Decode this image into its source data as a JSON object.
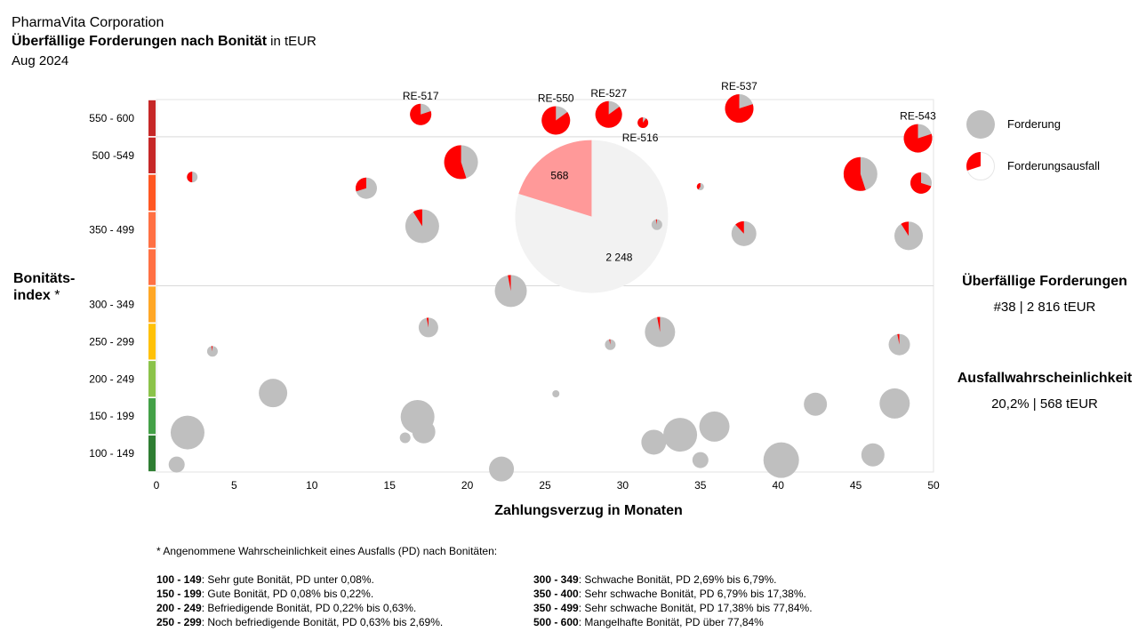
{
  "header": {
    "company": "PharmaVita Corporation",
    "title": "Überfällige Forderungen nach Bonität",
    "unit": "in tEUR",
    "period": "Aug 2024"
  },
  "colors": {
    "receivable": "#bfbfbf",
    "default": "#ff0000",
    "highlight_receivable": "#f2f2f2",
    "highlight_default": "#ff9999",
    "bands": [
      "#2e7d32",
      "#43a047",
      "#8bc34a",
      "#ffc107",
      "#ffa726",
      "#ff7043",
      "#ff5722",
      "#c62828"
    ]
  },
  "chart_data": {
    "type": "scatter",
    "subtype": "bubble-pie",
    "xlabel": "Zahlungsverzug in Monaten",
    "ylabel": "Bonitäts-\nindex",
    "ylabel_mark": "*",
    "xlim": [
      0,
      50
    ],
    "xticks": [
      0,
      5,
      10,
      15,
      20,
      25,
      30,
      35,
      40,
      45,
      50
    ],
    "ylim": [
      100,
      600
    ],
    "yticks": [
      {
        "label": "100 - 149",
        "value": 125
      },
      {
        "label": "150 - 199",
        "value": 175
      },
      {
        "label": "200 - 249",
        "value": 225
      },
      {
        "label": "250 - 299",
        "value": 275
      },
      {
        "label": "300 - 349",
        "value": 325
      },
      {
        "label": "350 - 499",
        "value": 425
      },
      {
        "label": "500 -549",
        "value": 525
      },
      {
        "label": "550 - 600",
        "value": 575
      }
    ],
    "band_bounds": [
      100,
      150,
      200,
      250,
      300,
      350,
      400,
      450,
      500,
      550,
      600
    ],
    "separators": [
      350,
      550
    ],
    "legend": {
      "receivable": "Forderung",
      "default": "Forderungsausfall",
      "placement": "top-right"
    },
    "highlight": {
      "x": 28,
      "y": 443,
      "r": 86,
      "default": "568",
      "remaining": "2 248",
      "default_share": 0.202
    },
    "points": [
      {
        "x": 17,
        "y": 580,
        "r": 12,
        "d": 0.8,
        "label": "RE-517"
      },
      {
        "x": 25.7,
        "y": 572,
        "r": 16,
        "d": 0.85,
        "label": "RE-550"
      },
      {
        "x": 29.1,
        "y": 580,
        "r": 15,
        "d": 0.85,
        "label": "RE-527"
      },
      {
        "x": 31.3,
        "y": 569,
        "r": 6,
        "d": 0.9,
        "label": "RE-516"
      },
      {
        "x": 37.5,
        "y": 588,
        "r": 16,
        "d": 0.8,
        "label": "RE-537"
      },
      {
        "x": 49,
        "y": 548,
        "r": 16,
        "d": 0.8,
        "label": "RE-543"
      },
      {
        "x": 2.3,
        "y": 496,
        "r": 6,
        "d": 0.5
      },
      {
        "x": 13.5,
        "y": 481,
        "r": 12,
        "d": 0.3
      },
      {
        "x": 19.6,
        "y": 516,
        "r": 19,
        "d": 0.55
      },
      {
        "x": 17.1,
        "y": 430,
        "r": 19,
        "d": 0.09
      },
      {
        "x": 32.2,
        "y": 432,
        "r": 6,
        "d": 0.03
      },
      {
        "x": 35.0,
        "y": 483,
        "r": 4,
        "d": 0.4
      },
      {
        "x": 45.3,
        "y": 500,
        "r": 19,
        "d": 0.55
      },
      {
        "x": 49.2,
        "y": 488,
        "r": 12,
        "d": 0.7
      },
      {
        "x": 37.8,
        "y": 420,
        "r": 14,
        "d": 0.12
      },
      {
        "x": 48.4,
        "y": 417,
        "r": 16,
        "d": 0.09
      },
      {
        "x": 22.8,
        "y": 343,
        "r": 18,
        "d": 0.02
      },
      {
        "x": 17.5,
        "y": 294,
        "r": 11,
        "d": 0.02
      },
      {
        "x": 3.6,
        "y": 262,
        "r": 6,
        "d": 0.02
      },
      {
        "x": 29.2,
        "y": 271,
        "r": 6,
        "d": 0.02
      },
      {
        "x": 32.4,
        "y": 288,
        "r": 17,
        "d": 0.02
      },
      {
        "x": 47.8,
        "y": 271,
        "r": 12,
        "d": 0.02
      },
      {
        "x": 7.5,
        "y": 206,
        "r": 16,
        "d": 0
      },
      {
        "x": 25.7,
        "y": 205,
        "r": 4,
        "d": 0
      },
      {
        "x": 2.0,
        "y": 153,
        "r": 19,
        "d": 0
      },
      {
        "x": 16.8,
        "y": 174,
        "r": 19,
        "d": 0
      },
      {
        "x": 17.2,
        "y": 154,
        "r": 13,
        "d": 0
      },
      {
        "x": 16.0,
        "y": 146,
        "r": 6,
        "d": 0
      },
      {
        "x": 1.3,
        "y": 110,
        "r": 9,
        "d": 0
      },
      {
        "x": 22.2,
        "y": 104,
        "r": 14,
        "d": 0
      },
      {
        "x": 32.0,
        "y": 140,
        "r": 14,
        "d": 0
      },
      {
        "x": 33.7,
        "y": 150,
        "r": 19,
        "d": 0
      },
      {
        "x": 35.9,
        "y": 161,
        "r": 17,
        "d": 0
      },
      {
        "x": 35.0,
        "y": 116,
        "r": 9,
        "d": 0
      },
      {
        "x": 40.2,
        "y": 116,
        "r": 20,
        "d": 0
      },
      {
        "x": 42.4,
        "y": 191,
        "r": 13,
        "d": 0
      },
      {
        "x": 46.1,
        "y": 123,
        "r": 13,
        "d": 0
      },
      {
        "x": 47.5,
        "y": 192,
        "r": 17,
        "d": 0
      }
    ]
  },
  "kpis": {
    "receivables_title": "Überfällige Forderungen",
    "receivables_value": "#38 | 2 816 tEUR",
    "default_title": "Ausfallwahrscheinlichkeit",
    "default_value": "20,2% | 568 tEUR"
  },
  "footnote": {
    "intro": "* Angenommene Wahrscheinlichkeit eines Ausfalls (PD) nach Bonitäten:",
    "left": [
      {
        "range": "100 - 149",
        "text": ": Sehr gute Bonität, PD unter 0,08%."
      },
      {
        "range": "150 - 199",
        "text": ": Gute Bonität, PD 0,08% bis 0,22%."
      },
      {
        "range": "200 - 249",
        "text": ": Befriedigende Bonität, PD 0,22% bis 0,63%."
      },
      {
        "range": "250 - 299",
        "text": ": Noch befriedigende Bonität, PD 0,63% bis 2,69%."
      }
    ],
    "right": [
      {
        "range": "300 - 349",
        "text": ": Schwache Bonität, PD 2,69% bis 6,79%."
      },
      {
        "range": "350 - 400",
        "text": ": Sehr schwache Bonität, PD 6,79% bis 17,38%."
      },
      {
        "range": "350 - 499",
        "text": ": Sehr schwache Bonität, PD 17,38% bis 77,84%."
      },
      {
        "range": "500 - 600",
        "text": ": Mangelhafte Bonität, PD über 77,84%"
      }
    ]
  }
}
